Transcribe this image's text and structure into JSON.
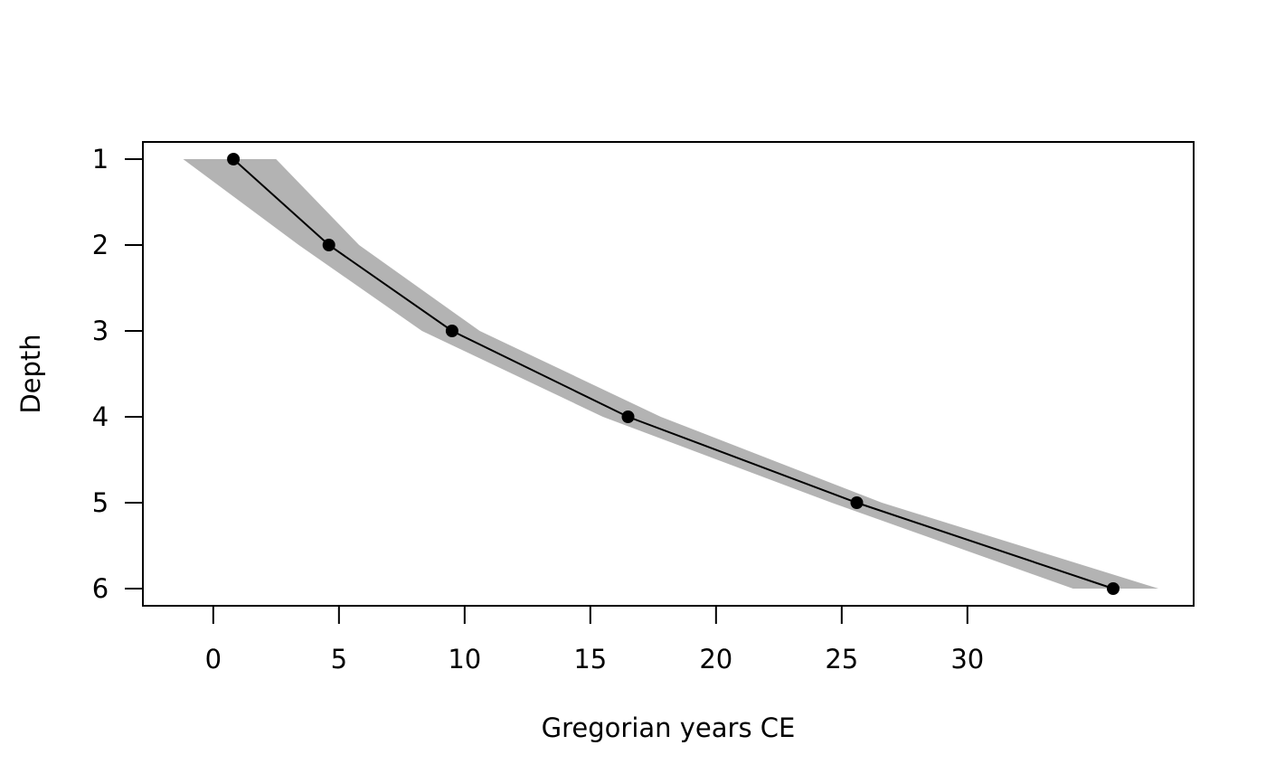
{
  "chart_data": {
    "type": "line",
    "title": "",
    "xlabel": "Gregorian years CE",
    "ylabel": "Depth",
    "xlim": [
      -2.8,
      39.0
    ],
    "ylim": [
      6.2,
      0.8
    ],
    "y_axis_reversed": true,
    "x_ticks": [
      0,
      5,
      10,
      15,
      20,
      25,
      30
    ],
    "y_ticks": [
      1,
      2,
      3,
      4,
      5,
      6
    ],
    "grid": false,
    "legend": "none",
    "series": [
      {
        "x": [
          0.8,
          4.6,
          9.5,
          16.5,
          25.6,
          35.8
        ],
        "y": [
          1,
          2,
          3,
          4,
          5,
          6
        ]
      }
    ],
    "uncertainty_band": {
      "depth": [
        1,
        2,
        3,
        4,
        5,
        6
      ],
      "x_min": [
        -1.2,
        3.4,
        8.3,
        15.5,
        24.6,
        34.2
      ],
      "x_max": [
        2.5,
        5.8,
        10.6,
        17.8,
        26.6,
        37.6
      ]
    },
    "colors": {
      "band": "#b3b3b3",
      "line": "#000000",
      "points": "#000000",
      "frame": "#000000"
    }
  }
}
